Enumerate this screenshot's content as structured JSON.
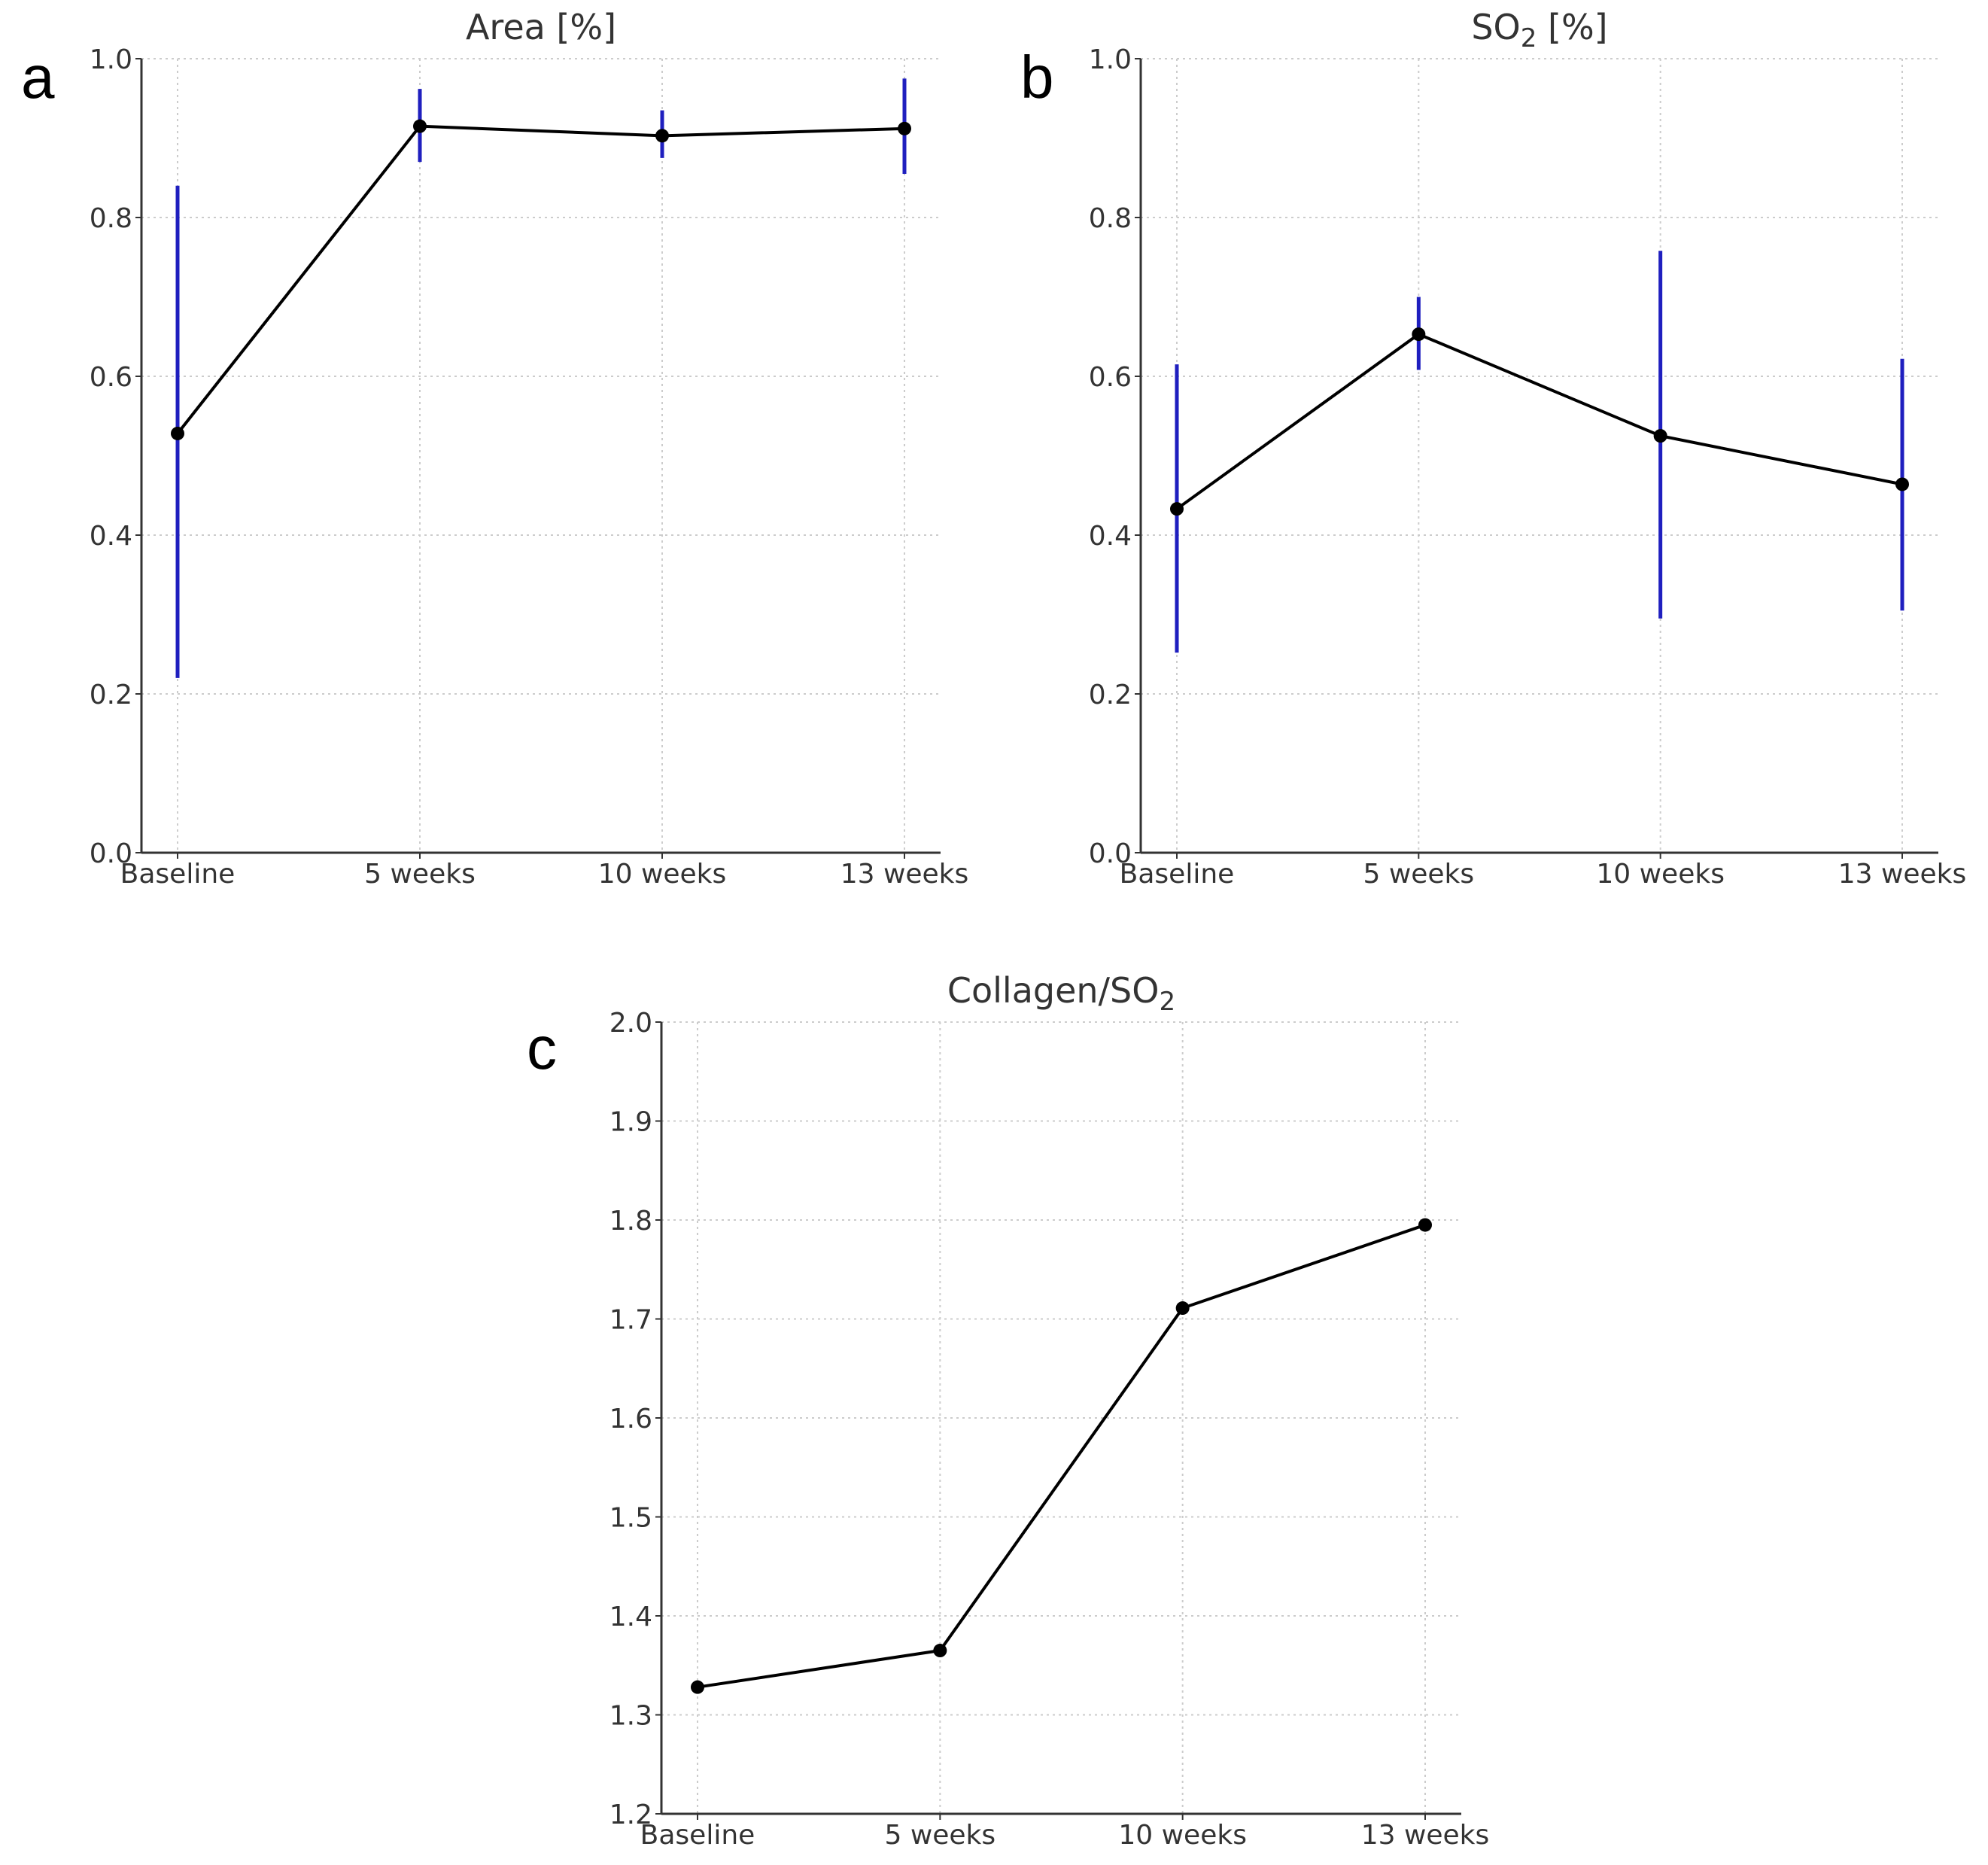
{
  "colors": {
    "line": "#000000",
    "marker": "#000000",
    "error": "#1f1fbf",
    "grid": "#cccccc",
    "axis": "#333333"
  },
  "chart_data": [
    {
      "panel": "a",
      "type": "line",
      "title": "Area [%]",
      "title_sub": "",
      "title_tail": "",
      "categories": [
        "Baseline",
        "5 weeks",
        "10 weeks",
        "13 weeks"
      ],
      "values": [
        0.528,
        0.915,
        0.903,
        0.912
      ],
      "error_low": [
        0.22,
        0.87,
        0.875,
        0.855
      ],
      "error_high": [
        0.84,
        0.962,
        0.935,
        0.975
      ],
      "ylim": [
        0.0,
        1.0
      ],
      "yticks": [
        "0.0",
        "0.2",
        "0.4",
        "0.6",
        "0.8",
        "1.0"
      ],
      "grid": true,
      "xlabel": "",
      "ylabel": ""
    },
    {
      "panel": "b",
      "type": "line",
      "title": "SO",
      "title_sub": "2",
      "title_tail": " [%]",
      "categories": [
        "Baseline",
        "5 weeks",
        "10 weeks",
        "13 weeks"
      ],
      "values": [
        0.433,
        0.653,
        0.525,
        0.464
      ],
      "error_low": [
        0.252,
        0.608,
        0.295,
        0.305
      ],
      "error_high": [
        0.615,
        0.7,
        0.758,
        0.622
      ],
      "ylim": [
        0.0,
        1.0
      ],
      "yticks": [
        "0.0",
        "0.2",
        "0.4",
        "0.6",
        "0.8",
        "1.0"
      ],
      "grid": true,
      "xlabel": "",
      "ylabel": ""
    },
    {
      "panel": "c",
      "type": "line",
      "title": "Collagen/SO",
      "title_sub": "2",
      "title_tail": "",
      "categories": [
        "Baseline",
        "5 weeks",
        "10 weeks",
        "13 weeks"
      ],
      "values": [
        1.328,
        1.365,
        1.711,
        1.795
      ],
      "error_low": [],
      "error_high": [],
      "ylim": [
        1.2,
        2.0
      ],
      "yticks": [
        "1.2",
        "1.3",
        "1.4",
        "1.5",
        "1.6",
        "1.7",
        "1.8",
        "1.9",
        "2.0"
      ],
      "grid": true,
      "xlabel": "",
      "ylabel": ""
    }
  ]
}
